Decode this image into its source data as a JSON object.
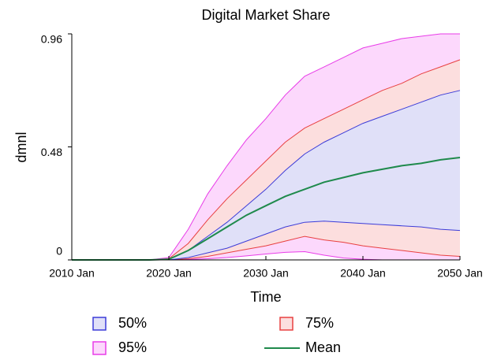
{
  "chart_data": {
    "type": "band",
    "title": "Digital Market Share",
    "x_label": "Time",
    "y_label": "dmnl",
    "x": [
      2010,
      2012,
      2014,
      2016,
      2018,
      2020,
      2022,
      2024,
      2026,
      2028,
      2030,
      2032,
      2034,
      2036,
      2038,
      2040,
      2042,
      2044,
      2046,
      2048,
      2050
    ],
    "xlim": [
      2010,
      2050
    ],
    "xticks": [
      {
        "value": 2010,
        "label": "2010 Jan"
      },
      {
        "value": 2020,
        "label": "2020 Jan"
      },
      {
        "value": 2030,
        "label": "2030 Jan"
      },
      {
        "value": 2040,
        "label": "2040 Jan"
      },
      {
        "value": 2050,
        "label": "2050 Jan"
      }
    ],
    "ylim": [
      0,
      0.96
    ],
    "yticks": [
      0,
      0.48,
      0.96
    ],
    "series": [
      {
        "name": "95%",
        "color": "#e83ce8",
        "fill": "#fcd8fc",
        "upper": [
          0,
          0,
          0,
          0,
          0,
          0.01,
          0.13,
          0.28,
          0.4,
          0.51,
          0.6,
          0.7,
          0.78,
          0.82,
          0.86,
          0.9,
          0.92,
          0.94,
          0.95,
          0.96,
          0.96
        ],
        "lower": [
          0,
          0,
          0,
          0,
          0,
          0,
          0.002,
          0.005,
          0.01,
          0.017,
          0.025,
          0.032,
          0.035,
          0.02,
          0.008,
          0.003,
          0,
          0,
          0,
          0,
          0
        ]
      },
      {
        "name": "75%",
        "color": "#e84040",
        "fill": "#fcdede",
        "upper": [
          0,
          0,
          0,
          0,
          0,
          0.005,
          0.07,
          0.17,
          0.26,
          0.34,
          0.42,
          0.5,
          0.56,
          0.6,
          0.64,
          0.68,
          0.72,
          0.75,
          0.79,
          0.82,
          0.85
        ],
        "lower": [
          0,
          0,
          0,
          0,
          0,
          0,
          0.005,
          0.015,
          0.03,
          0.045,
          0.06,
          0.08,
          0.1,
          0.085,
          0.075,
          0.06,
          0.05,
          0.04,
          0.03,
          0.02,
          0.015
        ]
      },
      {
        "name": "50%",
        "color": "#3c3cd8",
        "fill": "#e0e0f8",
        "upper": [
          0,
          0,
          0,
          0,
          0,
          0.003,
          0.04,
          0.1,
          0.16,
          0.23,
          0.3,
          0.38,
          0.45,
          0.5,
          0.54,
          0.58,
          0.61,
          0.64,
          0.67,
          0.7,
          0.72
        ],
        "lower": [
          0,
          0,
          0,
          0,
          0,
          0,
          0.01,
          0.03,
          0.05,
          0.08,
          0.11,
          0.14,
          0.16,
          0.165,
          0.16,
          0.155,
          0.15,
          0.145,
          0.14,
          0.13,
          0.125
        ]
      },
      {
        "name": "Mean",
        "color": "#1f8a4c",
        "values": [
          0,
          0,
          0,
          0,
          0,
          0.003,
          0.04,
          0.09,
          0.14,
          0.19,
          0.23,
          0.27,
          0.3,
          0.33,
          0.35,
          0.37,
          0.385,
          0.4,
          0.41,
          0.425,
          0.435
        ]
      }
    ]
  }
}
